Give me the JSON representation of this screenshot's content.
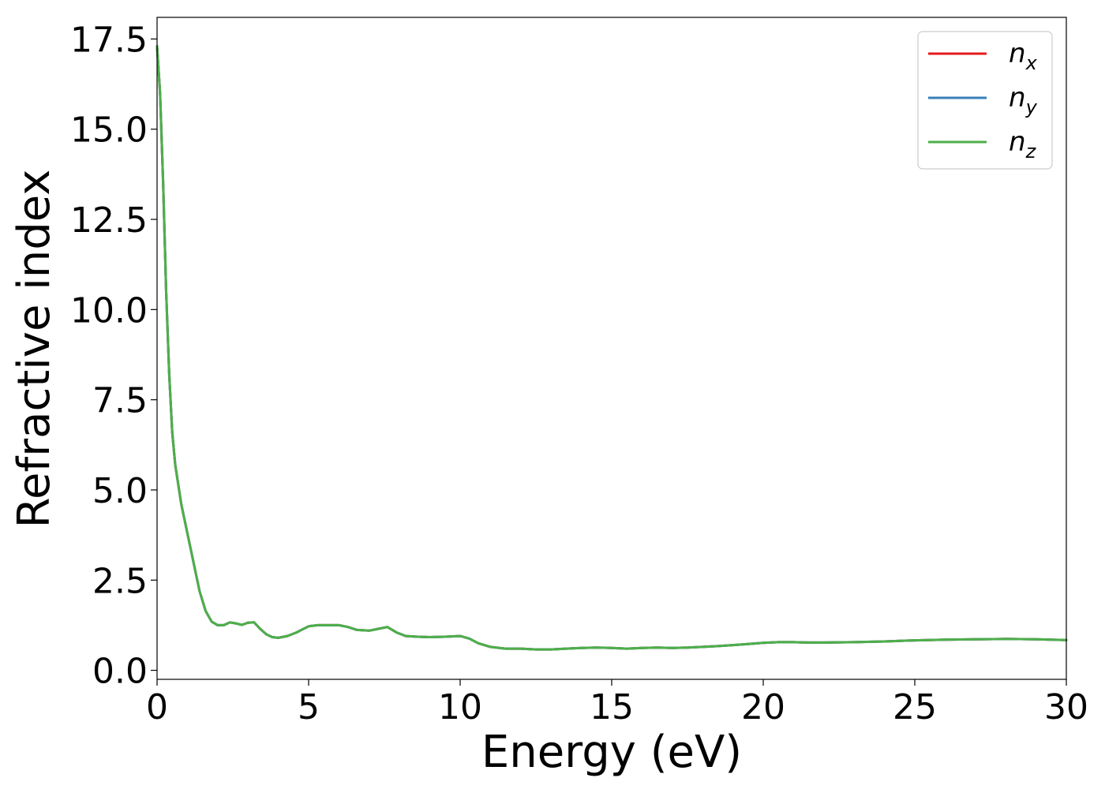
{
  "chart_data": {
    "type": "line",
    "xlabel": "Energy (eV)",
    "ylabel": "Refractive index",
    "xlim": [
      0,
      30
    ],
    "ylim": [
      -0.25,
      18.1
    ],
    "xticks": [
      0,
      5,
      10,
      15,
      20,
      25,
      30
    ],
    "xtick_labels": [
      "0",
      "5",
      "10",
      "15",
      "20",
      "25",
      "30"
    ],
    "yticks": [
      0.0,
      2.5,
      5.0,
      7.5,
      10.0,
      12.5,
      15.0,
      17.5
    ],
    "ytick_labels": [
      "0.0",
      "2.5",
      "5.0",
      "7.5",
      "10.0",
      "12.5",
      "15.0",
      "17.5"
    ],
    "grid": false,
    "legend_position": "top-right",
    "x": [
      0,
      0.1,
      0.2,
      0.3,
      0.4,
      0.5,
      0.6,
      0.8,
      1.0,
      1.2,
      1.4,
      1.6,
      1.8,
      2.0,
      2.2,
      2.4,
      2.6,
      2.8,
      3.0,
      3.2,
      3.4,
      3.6,
      3.8,
      4.0,
      4.3,
      4.6,
      5.0,
      5.3,
      5.6,
      6.0,
      6.3,
      6.6,
      7.0,
      7.3,
      7.6,
      7.9,
      8.2,
      8.6,
      9.0,
      9.5,
      10.0,
      10.3,
      10.6,
      11.0,
      11.5,
      12.0,
      12.5,
      13.0,
      13.5,
      14.0,
      14.5,
      15.0,
      15.5,
      16.0,
      16.5,
      17.0,
      17.5,
      18.0,
      18.5,
      19.0,
      19.5,
      20.0,
      20.5,
      21.0,
      21.5,
      22.0,
      23.0,
      24.0,
      25.0,
      26.0,
      27.0,
      28.0,
      29.0,
      30.0
    ],
    "series": [
      {
        "name": "n_x",
        "label_base": "n",
        "label_sub": "x",
        "color": "#e41a1c",
        "values": [
          17.3,
          16.0,
          13.5,
          10.5,
          8.2,
          6.6,
          5.7,
          4.6,
          3.8,
          3.0,
          2.2,
          1.65,
          1.35,
          1.25,
          1.25,
          1.33,
          1.3,
          1.26,
          1.32,
          1.33,
          1.15,
          1.0,
          0.92,
          0.9,
          0.95,
          1.05,
          1.22,
          1.25,
          1.25,
          1.25,
          1.2,
          1.12,
          1.1,
          1.15,
          1.2,
          1.05,
          0.95,
          0.93,
          0.92,
          0.93,
          0.95,
          0.88,
          0.75,
          0.65,
          0.6,
          0.6,
          0.58,
          0.58,
          0.6,
          0.62,
          0.63,
          0.62,
          0.6,
          0.62,
          0.63,
          0.62,
          0.63,
          0.65,
          0.67,
          0.7,
          0.73,
          0.76,
          0.78,
          0.78,
          0.77,
          0.77,
          0.78,
          0.8,
          0.83,
          0.85,
          0.86,
          0.87,
          0.86,
          0.84
        ]
      },
      {
        "name": "n_y",
        "label_base": "n",
        "label_sub": "y",
        "color": "#377eb8",
        "values": [
          17.3,
          16.0,
          13.5,
          10.5,
          8.2,
          6.6,
          5.7,
          4.6,
          3.8,
          3.0,
          2.2,
          1.65,
          1.35,
          1.25,
          1.25,
          1.33,
          1.3,
          1.26,
          1.32,
          1.33,
          1.15,
          1.0,
          0.92,
          0.9,
          0.95,
          1.05,
          1.22,
          1.25,
          1.25,
          1.25,
          1.2,
          1.12,
          1.1,
          1.15,
          1.2,
          1.05,
          0.95,
          0.93,
          0.92,
          0.93,
          0.95,
          0.88,
          0.75,
          0.65,
          0.6,
          0.6,
          0.58,
          0.58,
          0.6,
          0.62,
          0.63,
          0.62,
          0.6,
          0.62,
          0.63,
          0.62,
          0.63,
          0.65,
          0.67,
          0.7,
          0.73,
          0.76,
          0.78,
          0.78,
          0.77,
          0.77,
          0.78,
          0.8,
          0.83,
          0.85,
          0.86,
          0.87,
          0.86,
          0.84
        ]
      },
      {
        "name": "n_z",
        "label_base": "n",
        "label_sub": "z",
        "color": "#4daf4a",
        "values": [
          17.3,
          16.0,
          13.5,
          10.5,
          8.2,
          6.6,
          5.7,
          4.6,
          3.8,
          3.0,
          2.2,
          1.65,
          1.35,
          1.25,
          1.25,
          1.33,
          1.3,
          1.26,
          1.32,
          1.33,
          1.15,
          1.0,
          0.92,
          0.9,
          0.95,
          1.05,
          1.22,
          1.25,
          1.25,
          1.25,
          1.2,
          1.12,
          1.1,
          1.15,
          1.2,
          1.05,
          0.95,
          0.93,
          0.92,
          0.93,
          0.95,
          0.88,
          0.75,
          0.65,
          0.6,
          0.6,
          0.58,
          0.58,
          0.6,
          0.62,
          0.63,
          0.62,
          0.6,
          0.62,
          0.63,
          0.62,
          0.63,
          0.65,
          0.67,
          0.7,
          0.73,
          0.76,
          0.78,
          0.78,
          0.77,
          0.77,
          0.78,
          0.8,
          0.83,
          0.85,
          0.86,
          0.87,
          0.86,
          0.84
        ]
      }
    ]
  }
}
